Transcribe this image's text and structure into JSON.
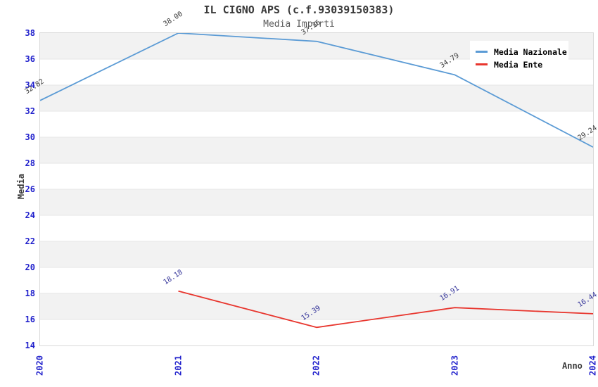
{
  "chart_data": {
    "type": "line",
    "title": "IL CIGNO APS (c.f.93039150383)",
    "subtitle": "Media Importi",
    "xlabel": "Anno",
    "ylabel": "Media",
    "x": [
      2020,
      2021,
      2022,
      2023,
      2024
    ],
    "xtick_labels": [
      "2020",
      "2021",
      "2022",
      "2023",
      "2024"
    ],
    "ylim": [
      14,
      38
    ],
    "ytick_step": 2,
    "ytick_labels": [
      "14",
      "16",
      "18",
      "20",
      "22",
      "24",
      "26",
      "28",
      "30",
      "32",
      "34",
      "36",
      "38"
    ],
    "grid": "alternating horizontal bands",
    "legend_position": "upper right",
    "series": [
      {
        "name": "Media Nazionale",
        "color": "#5b9bd5",
        "label_color": "#3a3a3a",
        "x": [
          2020,
          2021,
          2022,
          2023,
          2024
        ],
        "values": [
          32.82,
          38.0,
          37.36,
          34.79,
          29.24
        ],
        "point_labels": [
          "32.82",
          "38.00",
          "37.36",
          "34.79",
          "29.24"
        ]
      },
      {
        "name": "Media Ente",
        "color": "#e8362e",
        "label_color": "#333399",
        "x": [
          2021,
          2022,
          2023,
          2024
        ],
        "values": [
          18.18,
          15.39,
          16.91,
          16.44
        ],
        "point_labels": [
          "18.18",
          "15.39",
          "16.91",
          "16.44"
        ]
      }
    ]
  },
  "colors": {
    "band_gray": "#f2f2f2",
    "gridline": "#e6e6e6",
    "plot_border": "#d9d9d9",
    "tick_label_blue": "#2222cc",
    "title_dark": "#3a3a3a",
    "subtitle_gray": "#595959"
  }
}
